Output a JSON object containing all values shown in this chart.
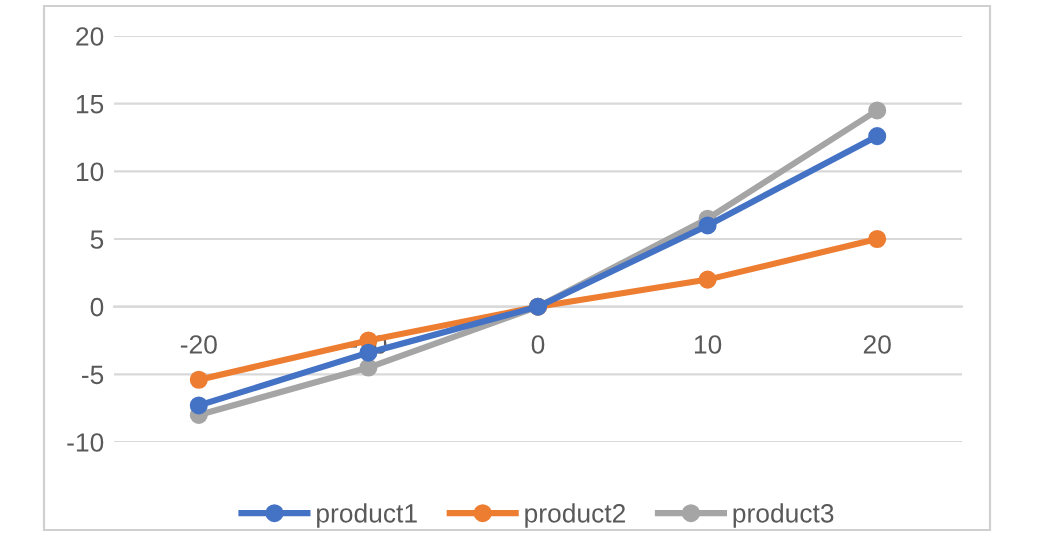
{
  "chart_data": {
    "type": "line",
    "x": [
      -20,
      -10,
      0,
      10,
      20
    ],
    "series": [
      {
        "name": "product1",
        "color": "#4472c4",
        "values": [
          -7.3,
          -3.4,
          0,
          6,
          12.6
        ]
      },
      {
        "name": "product2",
        "color": "#ed7d31",
        "values": [
          -5.4,
          -2.5,
          0,
          2,
          5
        ]
      },
      {
        "name": "product3",
        "color": "#a5a5a5",
        "values": [
          -8,
          -4.5,
          0,
          6.5,
          14.5
        ]
      }
    ],
    "xlim": [
      -25,
      25
    ],
    "xticks": [
      -20,
      -10,
      0,
      10,
      20
    ],
    "ylim": [
      -10,
      20
    ],
    "yticks": [
      -10,
      -5,
      0,
      5,
      10,
      15,
      20
    ],
    "grid": "y",
    "legend": "bottom",
    "marker": "circle",
    "line_style": "solid"
  }
}
